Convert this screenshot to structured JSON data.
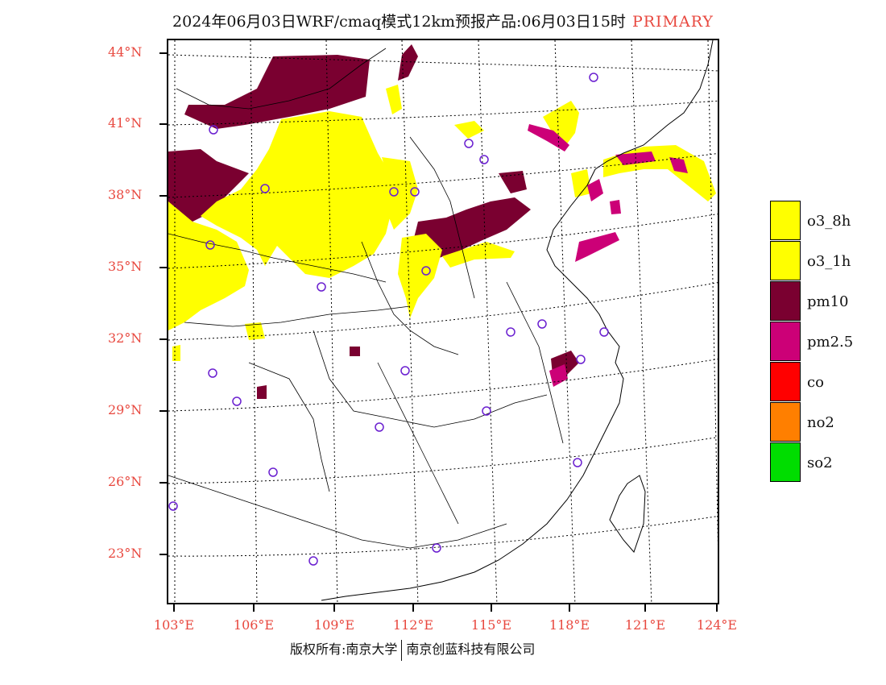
{
  "title": {
    "text": "2024年06月03日WRF/cmaq模式12km预报产品:06月03日15时",
    "tag": "PRIMARY"
  },
  "axes": {
    "lat_labels": [
      "44°N",
      "41°N",
      "38°N",
      "35°N",
      "32°N",
      "29°N",
      "26°N",
      "23°N"
    ],
    "lon_labels": [
      "103°E",
      "106°E",
      "109°E",
      "112°E",
      "115°E",
      "118°E",
      "121°E",
      "124°E"
    ]
  },
  "legend": {
    "items": [
      {
        "label": "o3_8h",
        "color": "#ffff00"
      },
      {
        "label": "o3_1h",
        "color": "#ffff00"
      },
      {
        "label": "pm10",
        "color": "#7a0030"
      },
      {
        "label": "pm2.5",
        "color": "#cc0077"
      },
      {
        "label": "co",
        "color": "#ff0000"
      },
      {
        "label": "no2",
        "color": "#ff7f00"
      },
      {
        "label": "so2",
        "color": "#00dd00"
      }
    ]
  },
  "footer": {
    "left": "版权所有:南京大学",
    "right": "南京创蓝科技有限公司"
  },
  "colors": {
    "o3": "#ffff00",
    "pm10": "#7a0030",
    "pm25": "#cc0077",
    "station": "#6a1fd0",
    "axis_label": "#e8483f"
  }
}
